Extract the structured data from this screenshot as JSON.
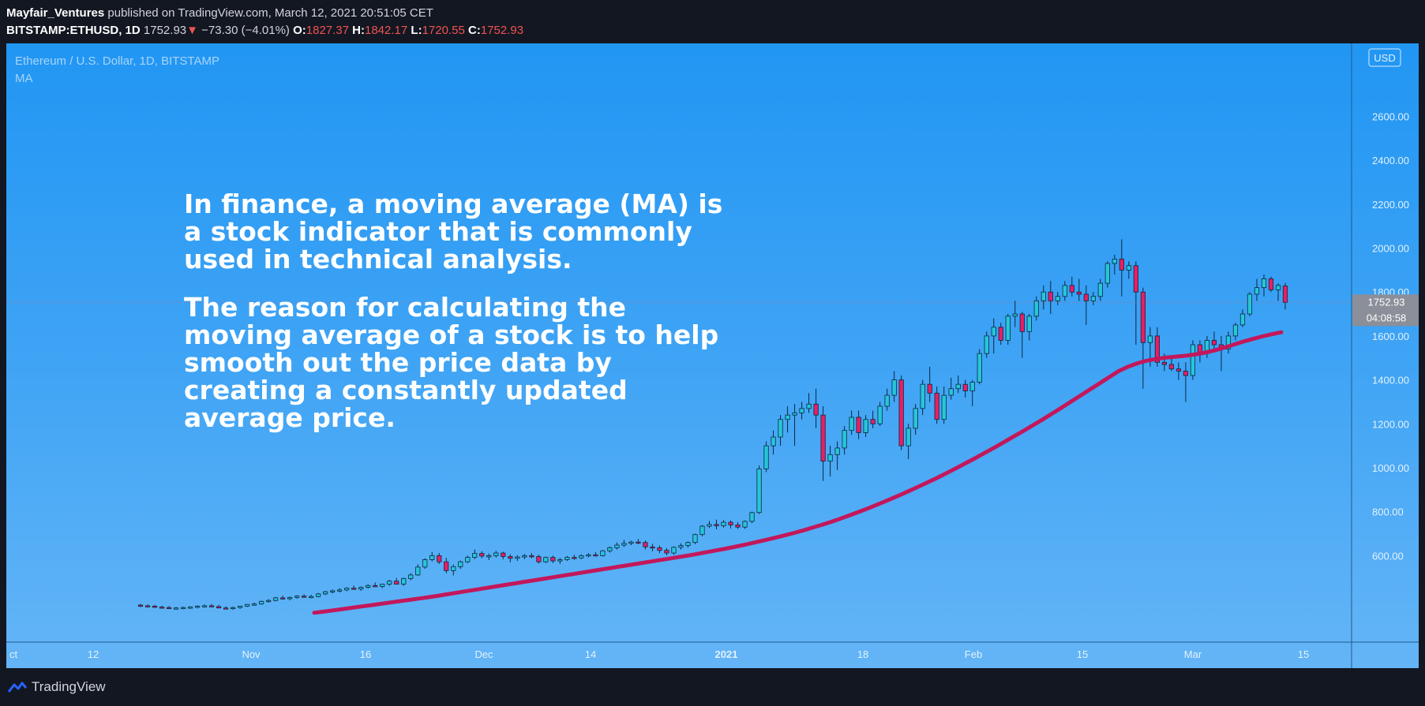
{
  "header": {
    "author": "Mayfair_Ventures",
    "published": "published on TradingView.com, March 12, 2021 20:51:05 CET",
    "symbol": "BITSTAMP:ETHUSD, 1D",
    "last": "1752.93",
    "arrow": "▼",
    "change": "−73.30 (−4.01%)",
    "o_label": "O:",
    "o_value": "1827.37",
    "h_label": "H:",
    "h_value": "1842.17",
    "l_label": "L:",
    "l_value": "1720.55",
    "c_label": "C:",
    "c_value": "1752.93"
  },
  "legend": {
    "title": "Ethereum / U.S. Dollar, 1D, BITSTAMP",
    "indicator": "MA"
  },
  "overlay": {
    "paragraph1": "In finance, a moving average (MA) is a stock indicator that is commonly used in technical analysis.",
    "paragraph2": "The reason for calculating the moving average of a stock is to help smooth out the price data by creating a constantly updated average price."
  },
  "price_axis": {
    "currency": "USD",
    "current_price": "1752.93",
    "countdown": "04:08:58"
  },
  "footer": {
    "brand": "TradingView"
  },
  "colors": {
    "up": "#26c6da",
    "down": "#e91e63",
    "ma": "#c2185b",
    "background_top": "#2196f3",
    "background_bottom": "#64b5f6"
  },
  "chart_data": {
    "type": "candlestick",
    "title": "Ethereum / U.S. Dollar, 1D, BITSTAMP",
    "y_range": [
      400,
      2700
    ],
    "y_ticks": [
      600,
      800,
      1000,
      1200,
      1400,
      1600,
      1800,
      2000,
      2200,
      2400,
      2600
    ],
    "x_ticks": [
      "Oct",
      "12",
      "Nov",
      "16",
      "Dec",
      "14",
      "2021",
      "18",
      "Feb",
      "15",
      "Mar",
      "15"
    ],
    "candles_ohlc": [
      [
        375,
        380,
        365,
        372
      ],
      [
        372,
        378,
        364,
        370
      ],
      [
        370,
        376,
        362,
        366
      ],
      [
        366,
        372,
        360,
        364
      ],
      [
        364,
        370,
        358,
        360
      ],
      [
        360,
        366,
        354,
        362
      ],
      [
        362,
        368,
        356,
        364
      ],
      [
        364,
        370,
        358,
        366
      ],
      [
        366,
        374,
        360,
        370
      ],
      [
        370,
        378,
        364,
        372
      ],
      [
        372,
        380,
        366,
        368
      ],
      [
        368,
        376,
        360,
        362
      ],
      [
        362,
        370,
        356,
        360
      ],
      [
        360,
        368,
        354,
        364
      ],
      [
        364,
        372,
        358,
        370
      ],
      [
        370,
        380,
        366,
        378
      ],
      [
        378,
        386,
        372,
        380
      ],
      [
        380,
        396,
        376,
        392
      ],
      [
        392,
        402,
        386,
        396
      ],
      [
        396,
        412,
        392,
        408
      ],
      [
        408,
        418,
        400,
        404
      ],
      [
        404,
        414,
        396,
        410
      ],
      [
        410,
        420,
        404,
        416
      ],
      [
        416,
        424,
        408,
        412
      ],
      [
        412,
        422,
        406,
        414
      ],
      [
        414,
        430,
        410,
        426
      ],
      [
        426,
        440,
        420,
        436
      ],
      [
        436,
        446,
        428,
        440
      ],
      [
        440,
        452,
        432,
        444
      ],
      [
        444,
        456,
        438,
        452
      ],
      [
        452,
        464,
        444,
        448
      ],
      [
        448,
        460,
        440,
        456
      ],
      [
        456,
        470,
        450,
        464
      ],
      [
        464,
        478,
        456,
        460
      ],
      [
        460,
        472,
        452,
        470
      ],
      [
        470,
        490,
        462,
        484
      ],
      [
        484,
        498,
        476,
        470
      ],
      [
        470,
        500,
        462,
        496
      ],
      [
        496,
        520,
        488,
        512
      ],
      [
        512,
        560,
        508,
        548
      ],
      [
        548,
        588,
        540,
        582
      ],
      [
        582,
        616,
        574,
        600
      ],
      [
        600,
        612,
        562,
        572
      ],
      [
        572,
        590,
        520,
        532
      ],
      [
        532,
        560,
        510,
        550
      ],
      [
        550,
        578,
        540,
        572
      ],
      [
        572,
        600,
        566,
        592
      ],
      [
        592,
        628,
        584,
        610
      ],
      [
        610,
        620,
        588,
        598
      ],
      [
        598,
        610,
        580,
        600
      ],
      [
        600,
        622,
        592,
        612
      ],
      [
        612,
        618,
        584,
        596
      ],
      [
        596,
        606,
        570,
        588
      ],
      [
        588,
        602,
        576,
        594
      ],
      [
        594,
        608,
        584,
        600
      ],
      [
        600,
        612,
        588,
        596
      ],
      [
        596,
        604,
        564,
        572
      ],
      [
        572,
        596,
        566,
        592
      ],
      [
        592,
        600,
        566,
        576
      ],
      [
        576,
        590,
        562,
        582
      ],
      [
        582,
        598,
        576,
        592
      ],
      [
        592,
        604,
        582,
        590
      ],
      [
        590,
        606,
        584,
        600
      ],
      [
        600,
        612,
        592,
        604
      ],
      [
        604,
        616,
        596,
        600
      ],
      [
        600,
        626,
        596,
        622
      ],
      [
        622,
        642,
        614,
        636
      ],
      [
        636,
        660,
        628,
        648
      ],
      [
        648,
        672,
        640,
        656
      ],
      [
        656,
        668,
        648,
        662
      ],
      [
        662,
        676,
        652,
        660
      ],
      [
        660,
        668,
        628,
        640
      ],
      [
        640,
        654,
        620,
        636
      ],
      [
        636,
        646,
        612,
        624
      ],
      [
        624,
        634,
        602,
        612
      ],
      [
        612,
        642,
        604,
        638
      ],
      [
        638,
        656,
        628,
        646
      ],
      [
        646,
        664,
        636,
        660
      ],
      [
        660,
        700,
        652,
        696
      ],
      [
        696,
        740,
        688,
        734
      ],
      [
        734,
        758,
        726,
        742
      ],
      [
        742,
        764,
        720,
        736
      ],
      [
        736,
        762,
        728,
        752
      ],
      [
        752,
        760,
        724,
        740
      ],
      [
        740,
        752,
        722,
        730
      ],
      [
        730,
        760,
        722,
        756
      ],
      [
        756,
        800,
        748,
        796
      ],
      [
        796,
        1010,
        790,
        995
      ],
      [
        995,
        1120,
        980,
        1100
      ],
      [
        1100,
        1170,
        1060,
        1140
      ],
      [
        1140,
        1240,
        1100,
        1220
      ],
      [
        1220,
        1280,
        1160,
        1240
      ],
      [
        1240,
        1290,
        1100,
        1250
      ],
      [
        1250,
        1300,
        1220,
        1270
      ],
      [
        1270,
        1340,
        1250,
        1290
      ],
      [
        1290,
        1360,
        1180,
        1240
      ],
      [
        1240,
        1280,
        940,
        1030
      ],
      [
        1030,
        1100,
        960,
        1060
      ],
      [
        1060,
        1120,
        990,
        1090
      ],
      [
        1090,
        1190,
        1060,
        1170
      ],
      [
        1170,
        1260,
        1150,
        1230
      ],
      [
        1230,
        1260,
        1130,
        1160
      ],
      [
        1160,
        1240,
        1140,
        1220
      ],
      [
        1220,
        1260,
        1180,
        1200
      ],
      [
        1200,
        1300,
        1190,
        1280
      ],
      [
        1280,
        1360,
        1260,
        1330
      ],
      [
        1330,
        1440,
        1300,
        1400
      ],
      [
        1400,
        1420,
        1080,
        1100
      ],
      [
        1100,
        1200,
        1040,
        1180
      ],
      [
        1180,
        1290,
        1150,
        1270
      ],
      [
        1270,
        1400,
        1240,
        1380
      ],
      [
        1380,
        1460,
        1300,
        1340
      ],
      [
        1340,
        1370,
        1200,
        1220
      ],
      [
        1220,
        1370,
        1200,
        1330
      ],
      [
        1330,
        1410,
        1310,
        1360
      ],
      [
        1360,
        1420,
        1340,
        1380
      ],
      [
        1380,
        1400,
        1320,
        1350
      ],
      [
        1350,
        1400,
        1280,
        1390
      ],
      [
        1390,
        1540,
        1380,
        1520
      ],
      [
        1520,
        1620,
        1500,
        1600
      ],
      [
        1600,
        1680,
        1520,
        1640
      ],
      [
        1640,
        1660,
        1560,
        1580
      ],
      [
        1580,
        1700,
        1560,
        1690
      ],
      [
        1690,
        1760,
        1640,
        1700
      ],
      [
        1700,
        1710,
        1500,
        1620
      ],
      [
        1620,
        1700,
        1580,
        1690
      ],
      [
        1690,
        1780,
        1670,
        1760
      ],
      [
        1760,
        1830,
        1720,
        1800
      ],
      [
        1800,
        1850,
        1700,
        1760
      ],
      [
        1760,
        1800,
        1740,
        1780
      ],
      [
        1780,
        1850,
        1760,
        1830
      ],
      [
        1830,
        1870,
        1780,
        1800
      ],
      [
        1800,
        1860,
        1760,
        1790
      ],
      [
        1790,
        1830,
        1650,
        1760
      ],
      [
        1760,
        1800,
        1740,
        1780
      ],
      [
        1780,
        1860,
        1760,
        1840
      ],
      [
        1840,
        1940,
        1820,
        1930
      ],
      [
        1930,
        1970,
        1880,
        1950
      ],
      [
        1950,
        2040,
        1780,
        1900
      ],
      [
        1900,
        1940,
        1860,
        1920
      ],
      [
        1920,
        1940,
        1560,
        1800
      ],
      [
        1800,
        1820,
        1360,
        1570
      ],
      [
        1570,
        1640,
        1460,
        1600
      ],
      [
        1600,
        1640,
        1460,
        1480
      ],
      [
        1480,
        1520,
        1440,
        1470
      ],
      [
        1470,
        1500,
        1440,
        1450
      ],
      [
        1450,
        1480,
        1400,
        1440
      ],
      [
        1440,
        1480,
        1300,
        1420
      ],
      [
        1420,
        1580,
        1400,
        1560
      ],
      [
        1560,
        1580,
        1480,
        1520
      ],
      [
        1520,
        1600,
        1500,
        1580
      ],
      [
        1580,
        1620,
        1540,
        1560
      ],
      [
        1560,
        1600,
        1440,
        1540
      ],
      [
        1540,
        1620,
        1520,
        1600
      ],
      [
        1600,
        1660,
        1580,
        1650
      ],
      [
        1650,
        1720,
        1640,
        1700
      ],
      [
        1700,
        1800,
        1690,
        1790
      ],
      [
        1790,
        1860,
        1760,
        1820
      ],
      [
        1820,
        1880,
        1780,
        1860
      ],
      [
        1860,
        1870,
        1800,
        1810
      ],
      [
        1810,
        1840,
        1760,
        1830
      ],
      [
        1827.37,
        1842.17,
        1720.55,
        1752.93
      ]
    ],
    "ma_series": [
      340,
      345,
      351,
      357,
      363,
      369,
      375,
      381,
      387,
      393,
      399,
      405,
      411,
      418,
      425,
      432,
      439,
      446,
      453,
      460,
      467,
      474,
      481,
      488,
      495,
      502,
      509,
      516,
      523,
      530,
      537,
      544,
      551,
      558,
      565,
      572,
      579,
      586,
      593,
      600,
      608,
      616,
      624,
      632,
      641,
      650,
      660,
      670,
      680,
      691,
      702,
      714,
      727,
      740,
      754,
      769,
      785,
      801,
      818,
      836,
      854,
      873,
      892,
      912,
      932,
      953,
      975,
      997,
      1020,
      1043,
      1067,
      1091,
      1116,
      1141,
      1166,
      1192,
      1218,
      1245,
      1272,
      1300,
      1328,
      1356,
      1384,
      1412,
      1440,
      1460,
      1476,
      1488,
      1496,
      1502,
      1506,
      1510,
      1516,
      1524,
      1534,
      1546,
      1560,
      1574,
      1586,
      1598,
      1608,
      1617
    ]
  }
}
